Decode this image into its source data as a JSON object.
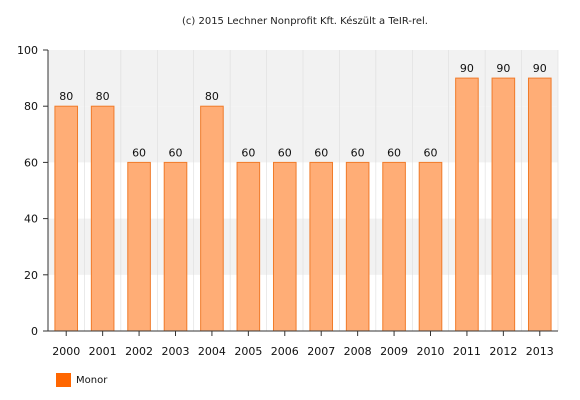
{
  "credit": "(c) 2015 Lechner Nonprofit Kft. Készült a TeIR-rel.",
  "chart_data": {
    "type": "bar",
    "title": "",
    "xlabel": "",
    "ylabel": "",
    "categories": [
      "2000",
      "2001",
      "2002",
      "2003",
      "2004",
      "2005",
      "2006",
      "2007",
      "2008",
      "2009",
      "2010",
      "2011",
      "2012",
      "2013"
    ],
    "series": [
      {
        "name": "Monor",
        "values": [
          80,
          80,
          60,
          60,
          80,
          60,
          60,
          60,
          60,
          60,
          60,
          90,
          90,
          90
        ]
      }
    ],
    "ylim": [
      0,
      100
    ],
    "yticks": [
      0,
      20,
      40,
      60,
      80,
      100
    ],
    "grid": true,
    "data_labels": true,
    "legend_position": "bottom-left",
    "colors": {
      "bar_fill": "#ffad76",
      "bar_stroke": "#f07b2a",
      "legend_swatch": "#ff6600",
      "band": "#f2f2f2",
      "axis": "#333333",
      "grid": "#dddddd"
    }
  }
}
